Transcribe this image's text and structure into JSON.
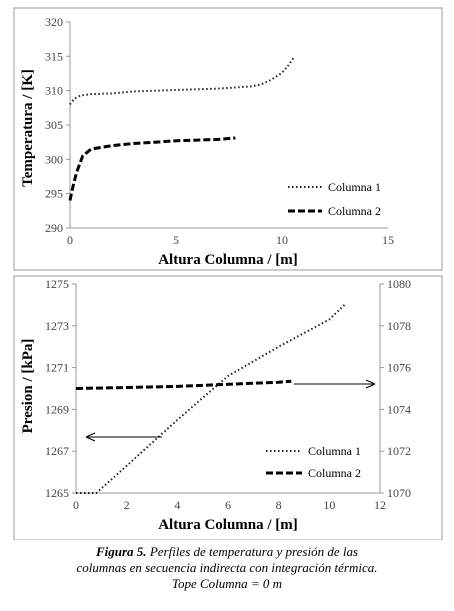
{
  "chart_data": [
    {
      "type": "line",
      "xlabel": "Altura Columna / [m]",
      "ylabel": "Temperatura / [K]",
      "xlim": [
        0,
        15
      ],
      "ylim": [
        290,
        320
      ],
      "x_ticks": [
        "0",
        "5",
        "10",
        "15"
      ],
      "y_ticks": [
        "290",
        "295",
        "300",
        "305",
        "310",
        "315",
        "320"
      ],
      "legend_position": "bottom-right",
      "grid": false,
      "series": [
        {
          "name": "Columna 1",
          "style": "dotted",
          "x": [
            0,
            0.2,
            0.5,
            1.0,
            2.0,
            3.0,
            4.0,
            5.0,
            6.0,
            7.0,
            8.0,
            8.5,
            9.0,
            9.5,
            10.0,
            10.3,
            10.6
          ],
          "y": [
            308,
            308.8,
            309.3,
            309.5,
            309.6,
            309.9,
            310.0,
            310.1,
            310.2,
            310.3,
            310.5,
            310.6,
            310.9,
            311.6,
            312.6,
            313.7,
            315.0
          ]
        },
        {
          "name": "Columna 2",
          "style": "dashed",
          "x": [
            0,
            0.1,
            0.3,
            0.6,
            1.0,
            2.0,
            3.0,
            4.0,
            5.0,
            6.0,
            7.0,
            7.8
          ],
          "y": [
            294,
            295.5,
            298.0,
            300.5,
            301.5,
            302.0,
            302.3,
            302.5,
            302.7,
            302.8,
            302.9,
            303.1
          ]
        }
      ]
    },
    {
      "type": "line",
      "xlabel": "Altura Columna / [m]",
      "ylabel": "Presion / [kPa]",
      "xlim": [
        0,
        12
      ],
      "ylim": [
        1265,
        1275
      ],
      "y2lim": [
        1070,
        1080
      ],
      "x_ticks": [
        "0",
        "2",
        "4",
        "6",
        "8",
        "10",
        "12"
      ],
      "y_ticks": [
        "1265",
        "1267",
        "1269",
        "1271",
        "1273",
        "1275"
      ],
      "y2_ticks": [
        "1070",
        "1072",
        "1074",
        "1076",
        "1078",
        "1080"
      ],
      "legend_position": "bottom-right",
      "grid": false,
      "annotations": [
        "arrow to left axis (Columna 1)",
        "arrow to right axis (Columna 2)"
      ],
      "series": [
        {
          "name": "Columna 1",
          "style": "dotted",
          "axis": "left",
          "x": [
            0,
            0.8,
            2,
            4,
            6,
            8,
            10,
            10.6
          ],
          "y": [
            1265.0,
            1265.0,
            1266.3,
            1268.5,
            1270.6,
            1272.0,
            1273.3,
            1274.0
          ]
        },
        {
          "name": "Columna 2",
          "style": "dashed",
          "axis": "right",
          "x": [
            0,
            2,
            4,
            6,
            8,
            8.5
          ],
          "y": [
            1075.0,
            1075.05,
            1075.1,
            1075.2,
            1075.3,
            1075.35
          ]
        }
      ]
    }
  ],
  "caption": {
    "label": "Figura 5.",
    "line1": " Perfiles de temperatura y presión de las",
    "line2": "columnas en secuencia indirecta con integración térmica.",
    "line3": "Tope Columna = 0 m"
  }
}
